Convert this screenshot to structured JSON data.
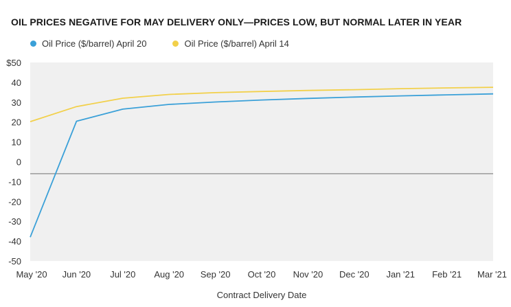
{
  "chart_data": {
    "type": "line",
    "title": "OIL PRICES NEGATIVE FOR MAY DELIVERY ONLY—PRICES LOW, BUT NORMAL LATER IN YEAR",
    "xlabel": "Contract Delivery Date",
    "ylabel": "",
    "categories": [
      "May '20",
      "Jun '20",
      "Jul '20",
      "Aug '20",
      "Sep '20",
      "Oct '20",
      "Nov '20",
      "Dec '20",
      "Jan '21",
      "Feb '21",
      "Mar '21"
    ],
    "ylim": [
      -50,
      50
    ],
    "yticks": [
      {
        "value": 50,
        "label": "$50"
      },
      {
        "value": 40,
        "label": "40"
      },
      {
        "value": 30,
        "label": "30"
      },
      {
        "value": 20,
        "label": "20"
      },
      {
        "value": 10,
        "label": "10"
      },
      {
        "value": 0,
        "label": "0"
      },
      {
        "value": -10,
        "label": "-10"
      },
      {
        "value": -20,
        "label": "-20"
      },
      {
        "value": -30,
        "label": "-30"
      },
      {
        "value": -40,
        "label": "-40"
      },
      {
        "value": -50,
        "label": "-50"
      }
    ],
    "zero_line_value": -6,
    "series": [
      {
        "name": "Oil Price ($/barrel) April 20",
        "color": "#3aa0d8",
        "values": [
          -38,
          20.4,
          26.5,
          28.9,
          30.1,
          31.1,
          31.9,
          32.6,
          33.2,
          33.7,
          34.2
        ]
      },
      {
        "name": "Oil Price ($/barrel) April 14",
        "color": "#f2d04a",
        "values": [
          20.2,
          27.8,
          32.0,
          33.9,
          34.8,
          35.4,
          35.9,
          36.3,
          36.8,
          37.2,
          37.5
        ]
      }
    ],
    "colors": {
      "plot_bg": "#f0f0f0",
      "zero_line": "#9a9a9a"
    },
    "grid": false,
    "legend_position": "top-left"
  }
}
